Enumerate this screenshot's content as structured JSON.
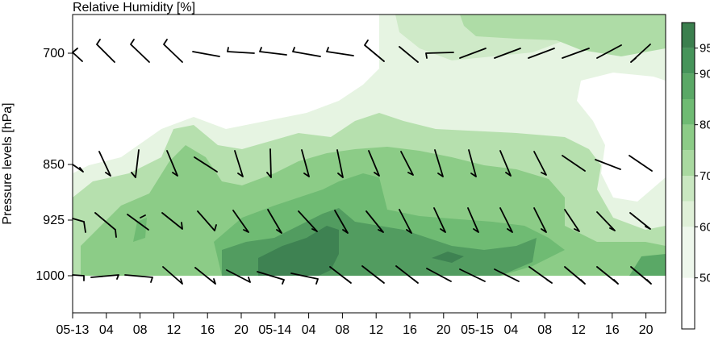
{
  "chart_data": {
    "type": "heatmap",
    "title": "Relative Humidity [%]",
    "ylabel": "Pressure levels [hPa]",
    "xlabel": "",
    "x_ticks": [
      "05-13",
      "04",
      "08",
      "12",
      "16",
      "20",
      "05-14",
      "04",
      "08",
      "12",
      "16",
      "20",
      "05-15",
      "04",
      "08",
      "12",
      "16",
      "20"
    ],
    "y_ticks": [
      700,
      850,
      925,
      1000
    ],
    "y_scale": "pressure (decreasing upward)",
    "colorbar": {
      "ticks": [
        50,
        60,
        70,
        80,
        90,
        95
      ],
      "levels": [
        40,
        50,
        60,
        65,
        70,
        75,
        80,
        85,
        90,
        95,
        100
      ],
      "colors": [
        "#ffffff",
        "#eef7ec",
        "#dff0d8",
        "#c9e7c1",
        "#a9d9a0",
        "#8ccc87",
        "#6fbb73",
        "#5aa866",
        "#46945a",
        "#3b7f4e"
      ]
    },
    "palette": {
      "very_dry": "#ffffff",
      "dry": "#eef7ec",
      "moist": "#a9d9a0",
      "humid": "#5aa866",
      "saturated": "#3b7f4e"
    },
    "wind_barbs": "shown at 700, 850, 925 and 1000 hPa every 2 hours",
    "legend": "colorbar right"
  }
}
